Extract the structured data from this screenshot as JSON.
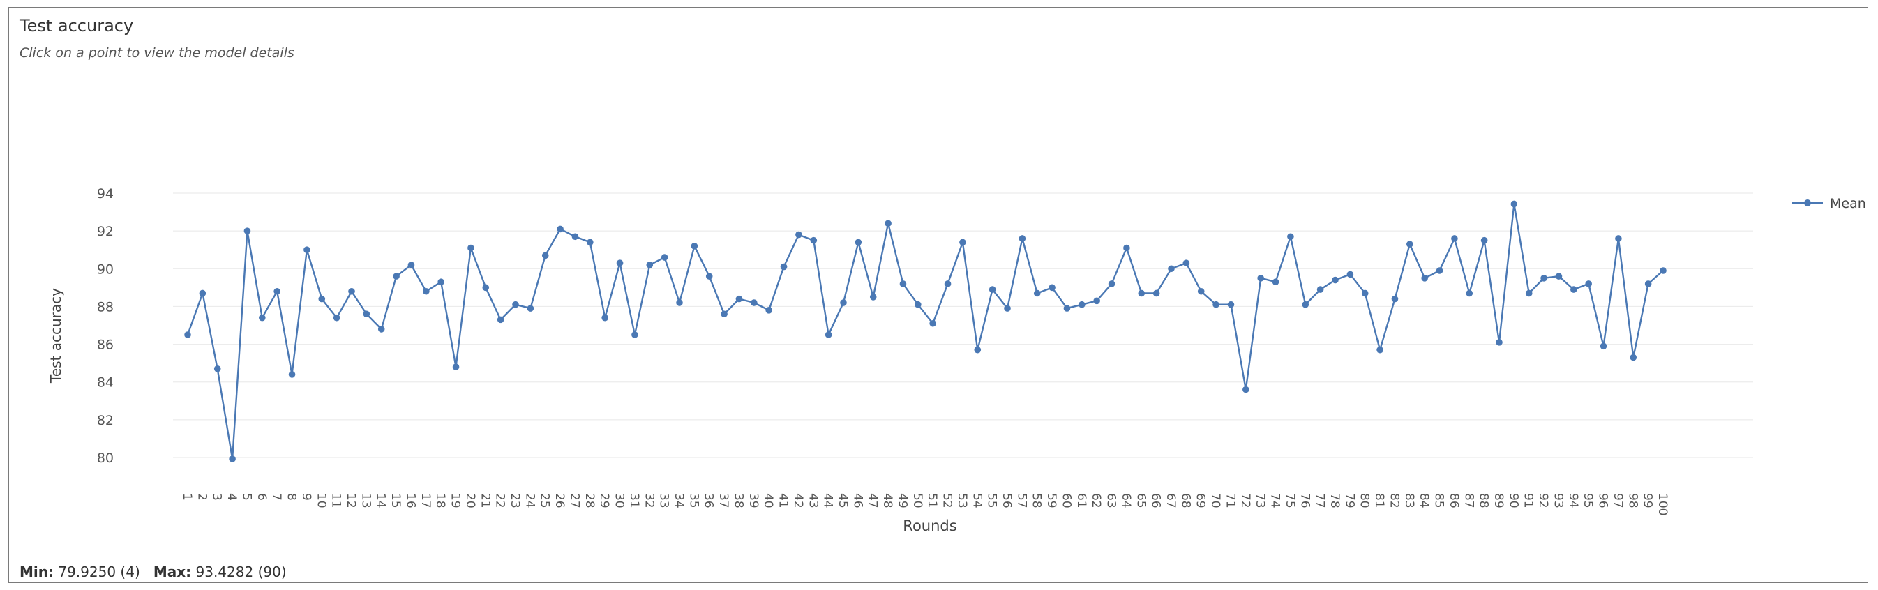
{
  "panel": {
    "title": "Test accuracy",
    "subtitle": "Click on a point to view the model details"
  },
  "footer": {
    "min_label": "Min:",
    "min_value": "79.9250 (4)",
    "max_label": "Max:",
    "max_value": "93.4282 (90)"
  },
  "chart_data": {
    "type": "line",
    "ylabel": "Test accuracy",
    "xlabel": "Rounds",
    "ylim": [
      80,
      94
    ],
    "yticks": [
      80,
      82,
      84,
      86,
      88,
      90,
      92,
      94
    ],
    "grid": true,
    "legend_position": "right",
    "series": [
      {
        "name": "Mean",
        "color": "#4a78b4",
        "x": [
          1,
          2,
          3,
          4,
          5,
          6,
          7,
          8,
          9,
          10,
          11,
          12,
          13,
          14,
          15,
          16,
          17,
          18,
          19,
          20,
          21,
          22,
          23,
          24,
          25,
          26,
          27,
          28,
          29,
          30,
          31,
          32,
          33,
          34,
          35,
          36,
          37,
          38,
          39,
          40,
          41,
          42,
          43,
          44,
          45,
          46,
          47,
          48,
          49,
          50,
          51,
          52,
          53,
          54,
          55,
          56,
          57,
          58,
          59,
          60,
          61,
          62,
          63,
          64,
          65,
          66,
          67,
          68,
          69,
          70,
          71,
          72,
          73,
          74,
          75,
          76,
          77,
          78,
          79,
          80,
          81,
          82,
          83,
          84,
          85,
          86,
          87,
          88,
          89,
          90,
          91,
          92,
          93,
          94,
          95,
          96,
          97,
          98,
          99,
          100
        ],
        "values": [
          86.5,
          88.7,
          84.7,
          79.925,
          92.0,
          87.4,
          88.8,
          84.4,
          91.0,
          88.4,
          87.4,
          88.8,
          87.6,
          86.8,
          89.6,
          90.2,
          88.8,
          89.3,
          84.8,
          91.1,
          89.0,
          87.3,
          88.1,
          87.9,
          90.7,
          92.1,
          91.7,
          91.4,
          87.4,
          90.3,
          86.5,
          90.2,
          90.6,
          88.2,
          91.2,
          89.6,
          87.6,
          88.4,
          88.2,
          87.8,
          90.1,
          91.8,
          91.5,
          86.5,
          88.2,
          91.4,
          88.5,
          92.4,
          89.2,
          88.1,
          87.1,
          89.2,
          91.4,
          85.7,
          88.9,
          87.9,
          91.6,
          88.7,
          89.0,
          87.9,
          88.1,
          88.3,
          89.2,
          91.1,
          88.7,
          88.7,
          90.0,
          90.3,
          88.8,
          88.1,
          88.1,
          83.6,
          89.5,
          89.3,
          91.7,
          88.1,
          88.9,
          89.4,
          89.7,
          88.7,
          85.7,
          88.4,
          91.3,
          89.5,
          89.9,
          91.6,
          88.7,
          91.5,
          86.1,
          93.4282,
          88.7,
          89.5,
          89.6,
          88.9,
          89.2,
          85.9,
          91.6,
          85.3,
          89.2,
          89.9
        ]
      }
    ]
  }
}
